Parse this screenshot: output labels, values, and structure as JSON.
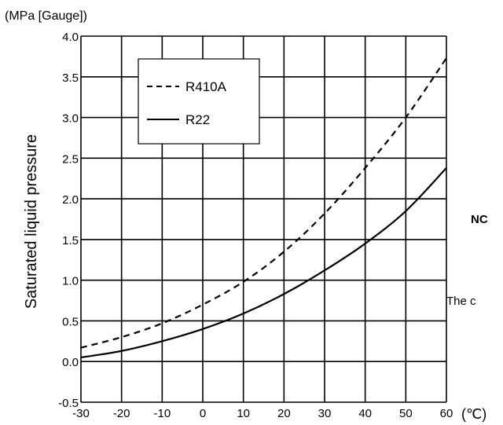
{
  "chart_data": {
    "type": "line",
    "unit_label": "(MPa [Gauge])",
    "ylabel": "Saturated liquid pressure",
    "x_unit_label": "(℃)",
    "xlim": [
      -30,
      60
    ],
    "ylim": [
      -0.5,
      4.0
    ],
    "x_ticks": [
      -30,
      -20,
      -10,
      0,
      10,
      20,
      30,
      40,
      50,
      60
    ],
    "x_tick_labels": [
      "-30",
      "-20",
      "-10",
      "0",
      "10",
      "20",
      "30",
      "40",
      "50",
      "60"
    ],
    "y_ticks": [
      -0.5,
      0.0,
      0.5,
      1.0,
      1.5,
      2.0,
      2.5,
      3.0,
      3.5,
      4.0
    ],
    "y_tick_labels": [
      "-0.5",
      "0.0",
      "0.5",
      "1.0",
      "1.5",
      "2.0",
      "2.5",
      "3.0",
      "3.5",
      "4.0"
    ],
    "grid": true,
    "legend_position": "top-left",
    "series": [
      {
        "name": "R410A",
        "style": "dashed",
        "color": "#000000",
        "x": [
          -30,
          -20,
          -10,
          0,
          10,
          20,
          30,
          40,
          50,
          60
        ],
        "y": [
          0.17,
          0.3,
          0.47,
          0.7,
          0.98,
          1.35,
          1.82,
          2.38,
          3.0,
          3.73
        ]
      },
      {
        "name": "R22",
        "style": "solid",
        "color": "#000000",
        "x": [
          -30,
          -20,
          -10,
          0,
          10,
          20,
          30,
          40,
          50,
          60
        ],
        "y": [
          0.05,
          0.13,
          0.25,
          0.4,
          0.59,
          0.83,
          1.12,
          1.45,
          1.85,
          2.38
        ]
      }
    ]
  },
  "side_texts": {
    "note_label": "NC",
    "body_text": "The c"
  }
}
